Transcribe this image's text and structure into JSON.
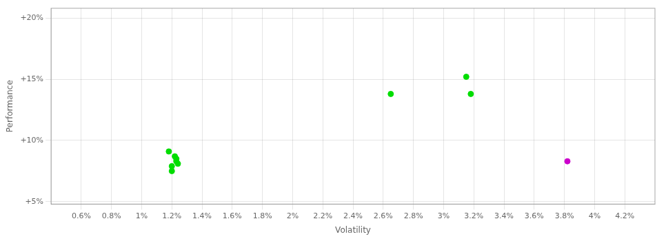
{
  "chart_data": {
    "type": "scatter",
    "xlabel": "Volatility",
    "ylabel": "Performance",
    "series": [
      {
        "color": "#00dd00",
        "values": [
          [
            0.0118,
            0.091
          ],
          [
            0.0122,
            0.087
          ],
          [
            0.0123,
            0.085
          ],
          [
            0.0123,
            0.083
          ],
          [
            0.0124,
            0.081
          ],
          [
            0.012,
            0.079
          ],
          [
            0.012,
            0.075
          ],
          [
            0.0265,
            0.138
          ],
          [
            0.0315,
            0.152
          ],
          [
            0.0318,
            0.138
          ]
        ]
      },
      {
        "color": "#cc00cc",
        "values": [
          [
            0.0382,
            0.083
          ]
        ]
      }
    ],
    "xlim": [
      0.004,
      0.044
    ],
    "ylim": [
      0.048,
      0.208
    ],
    "xticks": [
      {
        "value": 0.006,
        "label": "0.6%"
      },
      {
        "value": 0.008,
        "label": "0.8%"
      },
      {
        "value": 0.01,
        "label": "1%"
      },
      {
        "value": 0.012,
        "label": "1.2%"
      },
      {
        "value": 0.014,
        "label": "1.4%"
      },
      {
        "value": 0.016,
        "label": "1.6%"
      },
      {
        "value": 0.018,
        "label": "1.8%"
      },
      {
        "value": 0.02,
        "label": "2%"
      },
      {
        "value": 0.022,
        "label": "2.2%"
      },
      {
        "value": 0.024,
        "label": "2.4%"
      },
      {
        "value": 0.026,
        "label": "2.6%"
      },
      {
        "value": 0.028,
        "label": "2.8%"
      },
      {
        "value": 0.03,
        "label": "3%"
      },
      {
        "value": 0.032,
        "label": "3.2%"
      },
      {
        "value": 0.034,
        "label": "3.4%"
      },
      {
        "value": 0.036,
        "label": "3.6%"
      },
      {
        "value": 0.038,
        "label": "3.8%"
      },
      {
        "value": 0.04,
        "label": "4%"
      },
      {
        "value": 0.042,
        "label": "4.2%"
      }
    ],
    "yticks": [
      {
        "value": 0.05,
        "label": "+5%"
      },
      {
        "value": 0.1,
        "label": "+10%"
      },
      {
        "value": 0.15,
        "label": "+15%"
      },
      {
        "value": 0.2,
        "label": "+20%"
      }
    ],
    "grid": true
  }
}
